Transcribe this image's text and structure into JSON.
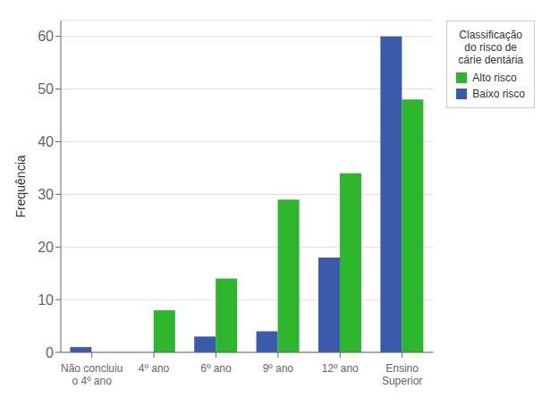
{
  "chart_data": {
    "type": "bar",
    "categories": [
      "Não concluiu\no 4º ano",
      "4º ano",
      "6º ano",
      "9º ano",
      "12º ano",
      "Ensino\nSuperior"
    ],
    "series": [
      {
        "name": "Baixo risco",
        "color": "#3a5aac",
        "values": [
          1,
          0,
          3,
          4,
          18,
          60
        ]
      },
      {
        "name": "Alto risco",
        "color": "#2db52d",
        "values": [
          0,
          8,
          14,
          29,
          34,
          48
        ]
      }
    ],
    "ylabel": "Frequência",
    "ylim": [
      0,
      63
    ],
    "yticks": [
      0,
      10,
      20,
      30,
      40,
      50,
      60
    ],
    "legend_title": "Classificação\ndo risco de\ncárie dentária",
    "legend": "right",
    "grid": true
  }
}
